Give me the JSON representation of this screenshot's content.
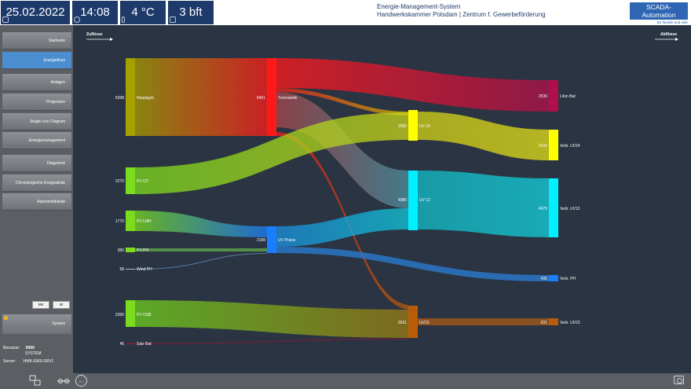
{
  "header": {
    "date": "25.02.2022",
    "time": "14:08",
    "temperature": "4 °C",
    "wind": "3 bft",
    "title_line1": "Energie-Management-System",
    "title_line2": "Handwerkskammer Potsdam | Zentrum f. Gewerbeförderung",
    "logo_text": "SCADA-Automation",
    "logo_slogan": "Be flexible and safe",
    "icons": {
      "date": "calendar-icon",
      "time": "clock-icon",
      "temperature": "thermometer-icon",
      "wind": "wind-flag-icon"
    }
  },
  "sidebar": {
    "items": [
      {
        "label": "Startseite",
        "active": false
      },
      {
        "label": "Energiefluss",
        "active": true
      },
      {
        "label": "Anlagen",
        "active": false
      },
      {
        "label": "Prognosen",
        "active": false
      },
      {
        "label": "Single Line Diagram",
        "active": false
      },
      {
        "label": "Energiemanagement",
        "active": false
      },
      {
        "label": "Diagramm",
        "active": false
      },
      {
        "label": "Chronologische Ereignisliste",
        "active": false
      },
      {
        "label": "Alarmmeldeliste",
        "active": false
      }
    ],
    "unit_buttons": [
      "kW",
      "W"
    ],
    "system_label": "System",
    "user_label": "Benutzer:",
    "user_id": "0000",
    "user_name": "SYSTEM",
    "server_label": "Server:",
    "server_name": "HWK-EMS-SRV1"
  },
  "footer": {
    "icons": [
      "network-icon",
      "connection-icon",
      "back-arrow-icon",
      "camera-icon"
    ]
  },
  "flow": {
    "inflow_label": "Zuflüsse",
    "outflow_label": "Abflüsse",
    "nodes": {
      "hauptgeb": {
        "name": "Hauptgeb.",
        "value": "6398",
        "color": "#a8a000"
      },
      "pv_cp": {
        "name": "PV CP",
        "value": "2270",
        "color": "#7bdc1d"
      },
      "pv_lmh": {
        "name": "PV LMH",
        "value": "1770",
        "color": "#7bdc1d"
      },
      "pv_ph": {
        "name": "PV PH",
        "value": "380",
        "color": "#7bdc1d"
      },
      "wind_ph": {
        "name": "Wind PH",
        "value": "58",
        "color": "#bbbbbb"
      },
      "pv_osb": {
        "name": "PV OSB",
        "value": "2260",
        "color": "#7bdc1d"
      },
      "salz_bat": {
        "name": "Salz Bat",
        "value": "45",
        "color": "#c0103a"
      },
      "trennstelle": {
        "name": "Trennstelle",
        "value": "6401",
        "color": "#ff1a1a"
      },
      "uv_praxis": {
        "name": "UV Praxis",
        "value": "2188",
        "color": "#1a7fff"
      },
      "uv24": {
        "name": "UV 24",
        "value": "2582",
        "color": "#ffff00"
      },
      "uv12": {
        "name": "UV 12",
        "value": "4980",
        "color": "#00f0ff"
      },
      "uv23": {
        "name": "UV23",
        "value": "2631",
        "color": "#b85c0a"
      },
      "liion_bat": {
        "name": "LiIon Bat",
        "value": "2536",
        "color": "#b0104a"
      },
      "verb_uv24": {
        "name": "Verb. UV24",
        "value": "2542",
        "color": "#ffff00"
      },
      "verb_uv12": {
        "name": "Verb. UV12",
        "value": "4975",
        "color": "#00f0ff"
      },
      "verb_ph": {
        "name": "Verb. PH",
        "value": "435",
        "color": "#1a7fff"
      },
      "verb_uv23": {
        "name": "Verb. UV23",
        "value": "631",
        "color": "#b85c0a"
      }
    }
  }
}
